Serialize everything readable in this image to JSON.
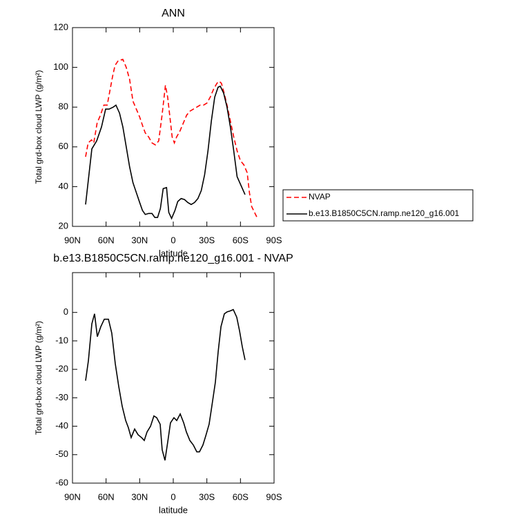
{
  "chart_data": [
    {
      "type": "line",
      "title": "ANN",
      "x_label": "latitude",
      "y_label": "Total grd-box cloud LWP (g/m²)",
      "xlim": [
        90,
        -90
      ],
      "ylim": [
        20,
        120
      ],
      "xticks": [
        {
          "value": 90,
          "label": "90N"
        },
        {
          "value": 60,
          "label": "60N"
        },
        {
          "value": 30,
          "label": "30N"
        },
        0,
        {
          "value": -30,
          "label": "30S"
        },
        {
          "value": -60,
          "label": "60S"
        },
        {
          "value": -90,
          "label": "90S"
        }
      ],
      "yticks": [
        20,
        40,
        60,
        80,
        100,
        120
      ],
      "legend": "right",
      "series": [
        {
          "name": "NVAP",
          "color": "#ff0000",
          "dash": true,
          "x": [
            78.3,
            76,
            73,
            71,
            68,
            65,
            62,
            59,
            57,
            54,
            52,
            49,
            45,
            42,
            39,
            36,
            33,
            30,
            27,
            25,
            22,
            19,
            16,
            13,
            10,
            8,
            7,
            5,
            3,
            1,
            -1,
            -3,
            -6,
            -9,
            -12,
            -15,
            -18,
            -21,
            -24,
            -27,
            -30,
            -33,
            -36,
            -39,
            -41,
            -43,
            -45,
            -48,
            -51,
            -54,
            -57,
            -60,
            -63,
            -66,
            -68,
            -70,
            -75.2
          ],
          "values": [
            55,
            62,
            63.5,
            62,
            72,
            76,
            81,
            81,
            87,
            96,
            101,
            103.5,
            104,
            100,
            94,
            83,
            79,
            75,
            70,
            67,
            65,
            62,
            61,
            63,
            76,
            86,
            91,
            85,
            75,
            65,
            62,
            65,
            68,
            72,
            76,
            78,
            79,
            80,
            81,
            81,
            82,
            85,
            89,
            92,
            93,
            92,
            88,
            81,
            73,
            65,
            58,
            53,
            51,
            47,
            37,
            30,
            24
          ]
        },
        {
          "name": "b.e13.B1850C5CN.ramp.ne120_g16.001",
          "color": "#000000",
          "dash": false,
          "x": [
            78.3,
            72.7,
            68.4,
            64.1,
            60.4,
            57.3,
            53.6,
            51.2,
            48,
            45,
            42,
            39,
            36,
            33,
            30,
            27.5,
            25,
            22,
            19,
            16.5,
            14,
            11.5,
            9,
            6,
            4,
            1.5,
            -1.5,
            -4,
            -7,
            -10,
            -13,
            -16,
            -19,
            -22,
            -25,
            -28,
            -31,
            -34,
            -37,
            -40,
            -42,
            -45,
            -48,
            -51,
            -54,
            -57,
            -64.1
          ],
          "values": [
            31,
            59,
            63,
            70,
            79,
            79,
            80,
            81,
            77,
            70,
            60,
            50,
            42,
            37,
            32,
            28,
            26,
            26.5,
            26.5,
            24.5,
            24.5,
            29,
            39,
            39.5,
            27,
            24,
            28,
            32.5,
            34,
            33.5,
            32,
            31,
            32,
            34,
            38,
            46,
            58,
            73,
            85,
            90,
            90.5,
            87,
            80,
            70,
            58,
            45,
            36
          ]
        }
      ]
    },
    {
      "type": "line",
      "title": "b.e13.B1850C5CN.ramp.ne120_g16.001 - NVAP",
      "x_label": "latitude",
      "y_label": "Total grd-box cloud LWP (g/m²)",
      "xlim": [
        90,
        -90
      ],
      "ylim": [
        -60,
        14
      ],
      "xticks": [
        {
          "value": 90,
          "label": "90N"
        },
        {
          "value": 60,
          "label": "60N"
        },
        {
          "value": 30,
          "label": "30N"
        },
        0,
        {
          "value": -30,
          "label": "30S"
        },
        {
          "value": -60,
          "label": "60S"
        },
        {
          "value": -90,
          "label": "90S"
        }
      ],
      "yticks": [
        -60,
        -50,
        -40,
        -30,
        -20,
        -10,
        0
      ],
      "series": [
        {
          "color": "#000000",
          "dash": false,
          "x": [
            78.3,
            75.8,
            72.7,
            70.3,
            67.8,
            64.7,
            61.6,
            57.9,
            54.9,
            51.8,
            48.7,
            45.6,
            42.5,
            40.1,
            37.6,
            34.5,
            31.4,
            28.3,
            25.9,
            23.4,
            20.3,
            17.3,
            14.8,
            11.7,
            9.9,
            7.4,
            4.9,
            2.5,
            -0.6,
            -3.1,
            -6.2,
            -9.3,
            -11.7,
            -14.8,
            -17.9,
            -21,
            -23.4,
            -26.5,
            -29,
            -32,
            -34.5,
            -37.6,
            -40.1,
            -42.6,
            -45.6,
            -48.1,
            -50.6,
            -53.6,
            -56.7,
            -59.2,
            -61.6,
            -64.1
          ],
          "values": [
            -24,
            -17,
            -4,
            -0.5,
            -8.5,
            -5,
            -2.4,
            -2.4,
            -7.3,
            -18,
            -26,
            -33,
            -38,
            -40.5,
            -44,
            -41,
            -43,
            -44,
            -45,
            -42,
            -40,
            -36.4,
            -37,
            -39.3,
            -48.3,
            -52,
            -45.4,
            -38.8,
            -37,
            -38,
            -35.7,
            -38.8,
            -42,
            -45,
            -46.6,
            -49,
            -49,
            -46.6,
            -43.4,
            -39.3,
            -32.8,
            -24.5,
            -13.8,
            -5,
            -0.5,
            0.2,
            0.5,
            1,
            -1.7,
            -6.5,
            -12,
            -16.7
          ]
        }
      ]
    }
  ]
}
